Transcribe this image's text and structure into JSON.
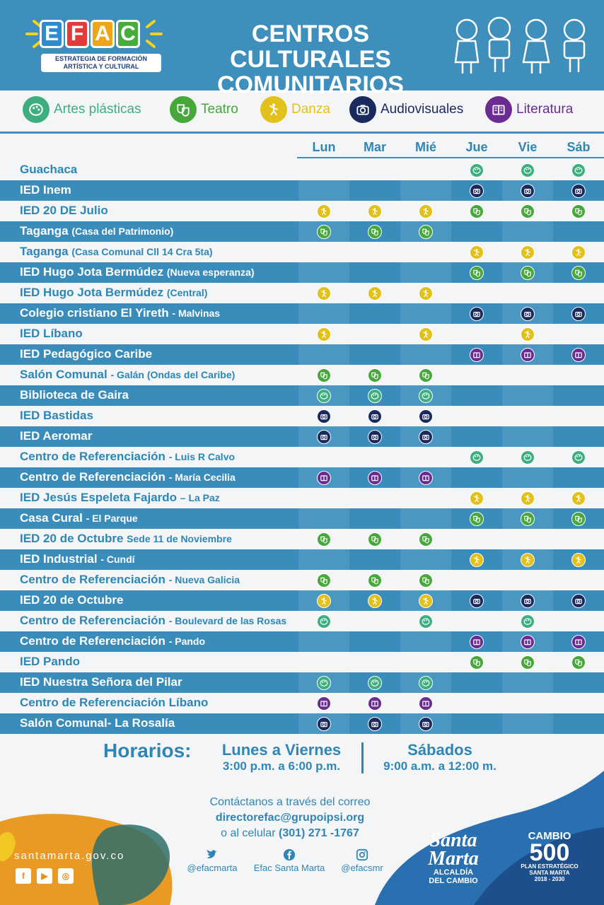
{
  "header": {
    "logo_letters": [
      "E",
      "F",
      "A",
      "C"
    ],
    "logo_subtitle_1": "ESTRATEGIA DE FORMACIÓN",
    "logo_subtitle_2": "ARTÍSTICA Y CULTURAL",
    "title_line1": "CENTROS CULTURALES",
    "title_line2": "COMUNITARIOS"
  },
  "legend": [
    {
      "key": "artes",
      "label": "Artes plásticas",
      "color": "#3fae7f",
      "label_color": "#3fae7f",
      "icon": "palette-icon"
    },
    {
      "key": "teatro",
      "label": "Teatro",
      "color": "#46a83a",
      "label_color": "#46a83a",
      "icon": "masks-icon"
    },
    {
      "key": "danza",
      "label": "Danza",
      "color": "#e2c11c",
      "label_color": "#e2c11c",
      "icon": "dancer-icon"
    },
    {
      "key": "audio",
      "label": "Audiovisuales",
      "color": "#1b2a5e",
      "label_color": "#1b2a5e",
      "icon": "camera-icon"
    },
    {
      "key": "lit",
      "label": "Literatura",
      "color": "#6a2c91",
      "label_color": "#6a2c91",
      "icon": "book-icon"
    }
  ],
  "days": [
    "Lun",
    "Mar",
    "Mié",
    "Jue",
    "Vie",
    "Sáb"
  ],
  "rows": [
    {
      "name": "Guachaca",
      "sub": "",
      "dark": false,
      "cells": [
        "",
        "",
        "",
        "artes",
        "artes",
        "artes"
      ]
    },
    {
      "name": "IED Inem",
      "sub": "",
      "dark": true,
      "cells": [
        "",
        "",
        "",
        "audio",
        "audio",
        "audio"
      ]
    },
    {
      "name": "IED 20 DE Julio",
      "sub": "",
      "dark": false,
      "cells": [
        "danza",
        "danza",
        "danza",
        "teatro",
        "teatro",
        "teatro"
      ]
    },
    {
      "name": "Taganga",
      "sub": "(Casa del Patrimonio)",
      "dark": true,
      "cells": [
        "teatro",
        "teatro",
        "teatro",
        "",
        "",
        ""
      ]
    },
    {
      "name": "Taganga",
      "sub": "(Casa Comunal Cll 14 Cra 5ta)",
      "dark": false,
      "cells": [
        "",
        "",
        "",
        "danza",
        "danza",
        "danza"
      ]
    },
    {
      "name": "IED Hugo Jota Bermúdez",
      "sub": "(Nueva esperanza)",
      "dark": true,
      "cells": [
        "",
        "",
        "",
        "teatro",
        "teatro",
        "teatro"
      ]
    },
    {
      "name": "IED Hugo Jota Bermúdez",
      "sub": "(Central)",
      "dark": false,
      "cells": [
        "danza",
        "danza",
        "danza",
        "",
        "",
        ""
      ]
    },
    {
      "name": "Colegio cristiano El Yireth",
      "sub": "- Malvinas",
      "dark": true,
      "cells": [
        "",
        "",
        "",
        "audio",
        "audio",
        "audio"
      ]
    },
    {
      "name": "IED Líbano",
      "sub": "",
      "dark": false,
      "cells": [
        "danza",
        "",
        "danza",
        "",
        "danza",
        ""
      ]
    },
    {
      "name": "IED Pedagógico Caribe",
      "sub": "",
      "dark": true,
      "cells": [
        "",
        "",
        "",
        "lit",
        "lit",
        "lit"
      ]
    },
    {
      "name": "Salón Comunal",
      "sub": "- Galán (Ondas del Caribe)",
      "dark": false,
      "cells": [
        "teatro",
        "teatro",
        "teatro",
        "",
        "",
        ""
      ]
    },
    {
      "name": "Biblioteca de Gaira",
      "sub": "",
      "dark": true,
      "cells": [
        "artes",
        "artes",
        "artes",
        "",
        "",
        ""
      ]
    },
    {
      "name": "IED Bastidas",
      "sub": "",
      "dark": false,
      "cells": [
        "audio",
        "audio",
        "audio",
        "",
        "",
        ""
      ]
    },
    {
      "name": "IED Aeromar",
      "sub": "",
      "dark": true,
      "cells": [
        "audio",
        "audio",
        "audio",
        "",
        "",
        ""
      ]
    },
    {
      "name": "Centro de Referenciación",
      "sub": "- Luis R Calvo",
      "dark": false,
      "cells": [
        "",
        "",
        "",
        "artes",
        "artes",
        "artes"
      ]
    },
    {
      "name": "Centro de Referenciación",
      "sub": "- María Cecilia",
      "dark": true,
      "cells": [
        "lit",
        "lit",
        "lit",
        "",
        "",
        ""
      ]
    },
    {
      "name": "IED Jesús Espeleta Fajardo",
      "sub": "– La Paz",
      "dark": false,
      "cells": [
        "",
        "",
        "",
        "danza",
        "danza",
        "danza"
      ]
    },
    {
      "name": "Casa Cural",
      "sub": "- El Parque",
      "dark": true,
      "cells": [
        "",
        "",
        "",
        "teatro",
        "teatro",
        "teatro"
      ]
    },
    {
      "name": "IED 20 de Octubre",
      "sub": "Sede 11 de Noviembre",
      "dark": false,
      "cells": [
        "teatro",
        "teatro",
        "teatro",
        "",
        "",
        ""
      ]
    },
    {
      "name": "IED Industrial",
      "sub": "- Cundí",
      "dark": true,
      "cells": [
        "",
        "",
        "",
        "danza",
        "danza",
        "danza"
      ]
    },
    {
      "name": "Centro de Referenciación",
      "sub": "- Nueva Galicia",
      "dark": false,
      "cells": [
        "teatro",
        "teatro",
        "teatro",
        "",
        "",
        ""
      ]
    },
    {
      "name": "IED 20 de Octubre",
      "sub": "",
      "dark": true,
      "cells": [
        "danza",
        "danza",
        "danza",
        "audio",
        "audio",
        "audio"
      ]
    },
    {
      "name": "Centro de Referenciación",
      "sub": "- Boulevard de las Rosas",
      "dark": false,
      "cells": [
        "artes",
        "",
        "artes",
        "",
        "artes",
        ""
      ]
    },
    {
      "name": "Centro de Referenciación",
      "sub": "- Pando",
      "dark": true,
      "cells": [
        "",
        "",
        "",
        "lit",
        "lit",
        "lit"
      ]
    },
    {
      "name": "IED Pando",
      "sub": "",
      "dark": false,
      "cells": [
        "",
        "",
        "",
        "teatro",
        "teatro",
        "teatro"
      ]
    },
    {
      "name": "IED Nuestra Señora del Pilar",
      "sub": "",
      "dark": true,
      "cells": [
        "artes",
        "artes",
        "artes",
        "",
        "",
        ""
      ]
    },
    {
      "name": "Centro de Referenciación Líbano",
      "sub": "",
      "dark": false,
      "cells": [
        "lit",
        "lit",
        "lit",
        "",
        "",
        ""
      ]
    },
    {
      "name": "Salón Comunal- La Rosalía",
      "sub": "",
      "dark": true,
      "cells": [
        "audio",
        "audio",
        "audio",
        "",
        "",
        ""
      ]
    }
  ],
  "schedule": {
    "label": "Horarios:",
    "weekdays_title": "Lunes a Viernes",
    "weekdays_time": "3:00 p.m. a 6:00 p.m.",
    "saturday_title": "Sábados",
    "saturday_time": "9:00 a.m. a 12:00 m."
  },
  "contact": {
    "line1": "Contáctanos a través del correo",
    "email": "directorefac@grupoipsi.org",
    "phone_prefix": "o al celular",
    "phone": "(301) 271 -1767",
    "twitter": "@efacmarta",
    "facebook": "Efac Santa Marta",
    "instagram": "@efacsmr"
  },
  "footer": {
    "site": "santamarta.gov.co",
    "sm_logo_1": "Santa",
    "sm_logo_2": "Marta",
    "sm_logo_3": "ALCALDÍA",
    "sm_logo_4": "DEL CAMBIO",
    "cambio_1": "CAMBIO",
    "cambio_2": "500",
    "cambio_3": "PLAN ESTRATÉGICO",
    "cambio_4": "SANTA MARTA",
    "cambio_5": "2018 - 2030"
  }
}
